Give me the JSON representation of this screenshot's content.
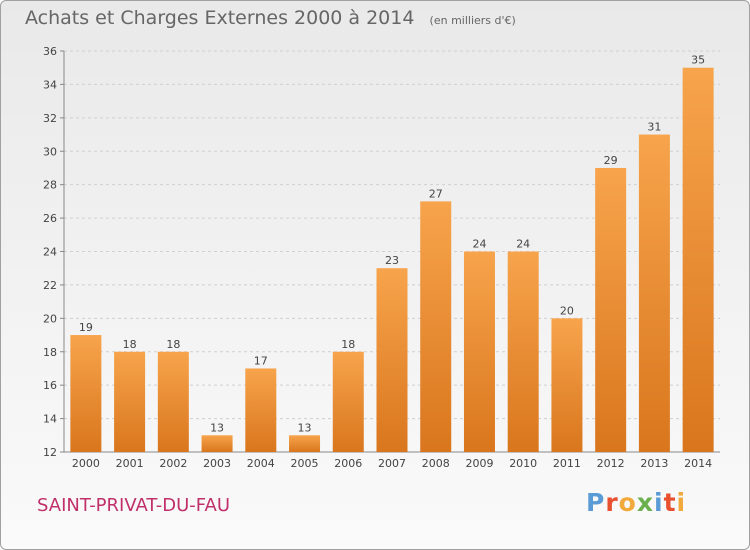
{
  "header": {
    "title": "Achats et Charges Externes 2000 à 2014",
    "unit": "(en milliers d'€)"
  },
  "footer": {
    "commune": "SAINT-PRIVAT-DU-FAU",
    "brand": "Proxiti"
  },
  "colors": {
    "bar_light": "#f7a44c",
    "bar_dark": "#d9761d",
    "commune_text": "#c0306a",
    "brand_letters": [
      "#5b9bd5",
      "#e8502f",
      "#f2a93b",
      "#6ab04c",
      "#5b9bd5",
      "#e8502f",
      "#f2a93b"
    ]
  },
  "chart_data": {
    "type": "bar",
    "title": "Achats et Charges Externes 2000 à 2014",
    "subtitle": "(en milliers d'€)",
    "categories": [
      "2000",
      "2001",
      "2002",
      "2003",
      "2004",
      "2005",
      "2006",
      "2007",
      "2008",
      "2009",
      "2010",
      "2011",
      "2012",
      "2013",
      "2014"
    ],
    "values": [
      19,
      18,
      18,
      13,
      17,
      13,
      18,
      23,
      27,
      24,
      24,
      20,
      29,
      31,
      35
    ],
    "ylim": [
      12,
      36
    ],
    "yticks": [
      12,
      14,
      16,
      18,
      20,
      22,
      24,
      26,
      28,
      30,
      32,
      34,
      36
    ],
    "grid": true,
    "legend": "none"
  }
}
